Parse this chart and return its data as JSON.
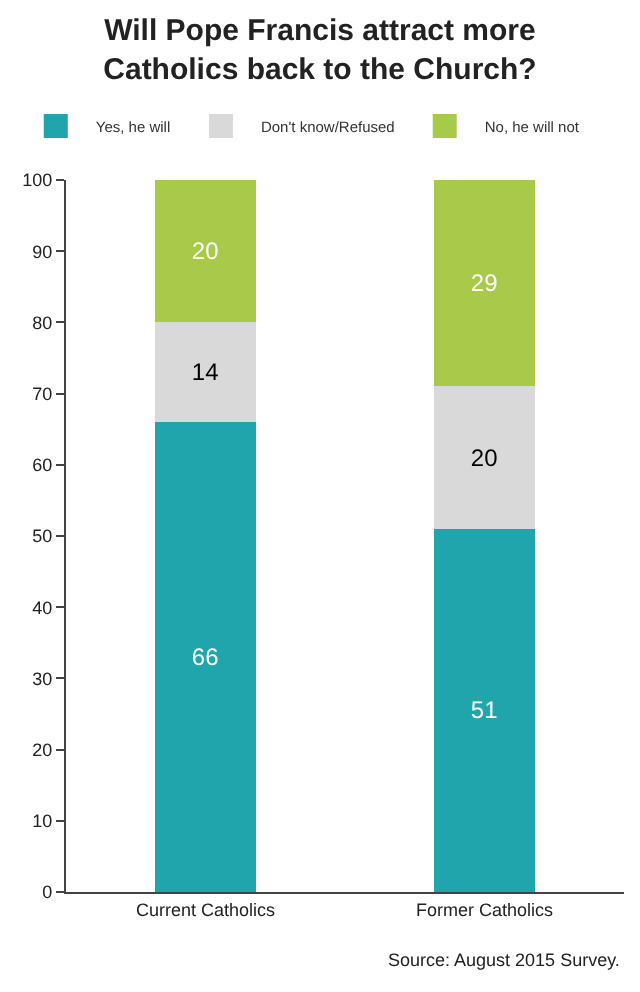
{
  "chart_data": {
    "type": "bar",
    "title": "Will Pope Francis attract more Catholics back to the Church?",
    "categories": [
      "Current Catholics",
      "Former Catholics"
    ],
    "series": [
      {
        "name": "Yes, he will",
        "color": "#1fa5ab",
        "values": [
          66,
          51
        ]
      },
      {
        "name": "Don't know/Refused",
        "color": "#d9d9d9",
        "values": [
          14,
          20
        ]
      },
      {
        "name": "No, he will not",
        "color": "#a9c94b",
        "values": [
          20,
          29
        ]
      }
    ],
    "stacked": true,
    "data_labels": true,
    "ylim": [
      0,
      100
    ],
    "yticks": [
      0,
      10,
      20,
      30,
      40,
      50,
      60,
      70,
      80,
      90,
      100
    ],
    "legend": "top",
    "annotations": [
      "Source: August 2015 Survey."
    ]
  }
}
